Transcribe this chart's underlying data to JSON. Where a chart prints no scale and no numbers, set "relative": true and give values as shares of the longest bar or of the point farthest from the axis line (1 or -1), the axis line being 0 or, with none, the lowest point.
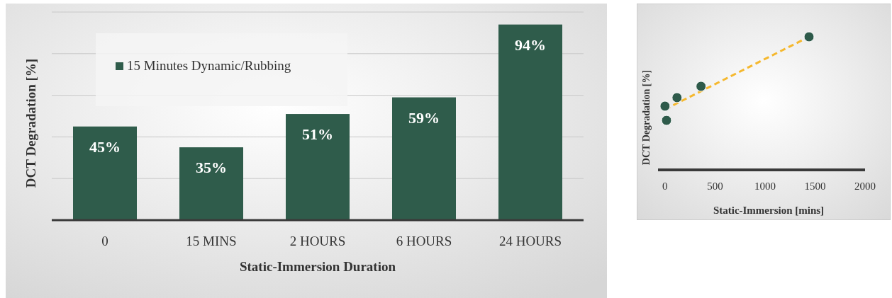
{
  "chart_data": [
    {
      "type": "bar",
      "xlabel": "Static-Immersion Duration",
      "ylabel": "DCT Degradation [%]",
      "categories": [
        "0",
        "15 MINS",
        "2 HOURS",
        "6 HOURS",
        "24 HOURS"
      ],
      "series": [
        {
          "name": "15 Minutes Dynamic/Rubbing",
          "color": "#2f5c4b",
          "values": [
            45,
            35,
            51,
            59,
            94
          ],
          "value_labels": [
            "45%",
            "35%",
            "51%",
            "59%",
            "94%"
          ]
        }
      ],
      "ylim": [
        0,
        100
      ],
      "yticks": [
        {
          "value": 0,
          "label": null
        },
        {
          "value": 20,
          "label": null
        },
        {
          "value": 40,
          "label": null
        },
        {
          "value": 60,
          "label": null
        },
        {
          "value": 80,
          "label": null
        },
        {
          "value": 100,
          "label": null
        }
      ],
      "tick_labels": "x",
      "grid": "y",
      "legend": "top left"
    },
    {
      "type": "scatter",
      "xlabel": "Static-Immersion [mins]",
      "ylabel": "DCT Degradation [%]",
      "relative": true,
      "series": [
        {
          "type": "scatter",
          "color": "#2e5a4a",
          "marker": "circle",
          "x": [
            0,
            15,
            120,
            360,
            1440
          ],
          "values": [
            0.479,
            0.372,
            0.543,
            0.628,
            1
          ]
        },
        {
          "type": "line",
          "color": "#f5b82e",
          "line_style": "dashed",
          "marker": "none",
          "x": [
            0,
            1440
          ],
          "values": [
            0.455,
            1
          ]
        }
      ],
      "xlim": [
        -70,
        2000
      ],
      "xticks": [
        0,
        500,
        1000,
        1500,
        2000
      ]
    }
  ]
}
